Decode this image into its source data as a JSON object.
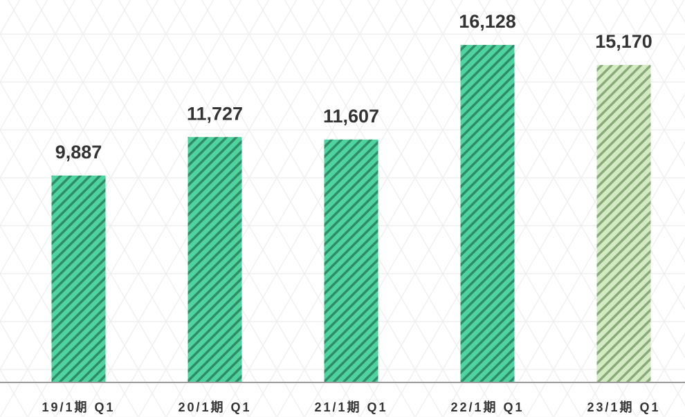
{
  "chart_data": {
    "type": "bar",
    "categories": [
      "19/1期 Q1",
      "20/1期 Q1",
      "21/1期 Q1",
      "22/1期 Q1",
      "23/1期 Q1"
    ],
    "values": [
      9887,
      11727,
      11607,
      16128,
      15170
    ],
    "value_labels": [
      "9,887",
      "11,727",
      "11,607",
      "16,128",
      "15,170"
    ],
    "colors": [
      "#4fd4a0",
      "#4fd4a0",
      "#4fd4a0",
      "#4fd4a0",
      "#d3ebc3"
    ],
    "hatch_colors": [
      "#2f8c68",
      "#2f8c68",
      "#2f8c68",
      "#2f8c68",
      "#8aaa7a"
    ],
    "ylim": [
      0,
      18275
    ]
  }
}
